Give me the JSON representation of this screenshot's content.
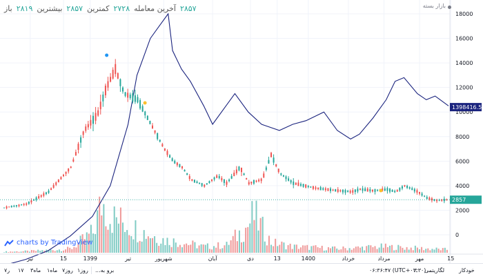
{
  "legend": {
    "bar_value": "۲۸۱۹",
    "bar_label": "باز",
    "high_value": "۲۸۵۷",
    "high_label": "بیشترین",
    "low_value": "۲۷۲۸",
    "low_label": "کمترین",
    "last_label": "آخرین معامله",
    "last_value": "۲۸۵۷"
  },
  "market_status": "بازار بسته",
  "branding": "charts by TradingView",
  "price_axis": {
    "ticks": [
      {
        "value": 18000,
        "label": "18000"
      },
      {
        "value": 16000,
        "label": "16000"
      },
      {
        "value": 14000,
        "label": "14000"
      },
      {
        "value": 12000,
        "label": "12000"
      },
      {
        "value": 10000,
        "label": "10000"
      },
      {
        "value": 8000,
        "label": "8000"
      },
      {
        "value": 6000,
        "label": "6000"
      },
      {
        "value": 4000,
        "label": "4000"
      },
      {
        "value": 2000,
        "label": "2000"
      },
      {
        "value": 0,
        "label": "0"
      }
    ],
    "index_badge": "1398416.50",
    "index_badge_value": 10400,
    "price_badge": "2857",
    "price_badge_value": 2857
  },
  "time_axis": [
    {
      "label": "تیر",
      "pos": 0.06
    },
    {
      "label": "15",
      "pos": 0.135
    },
    {
      "label": "1399",
      "pos": 0.195
    },
    {
      "label": "تیر",
      "pos": 0.28
    },
    {
      "label": "شهریور",
      "pos": 0.36
    },
    {
      "label": "آبان",
      "pos": 0.47
    },
    {
      "label": "دی",
      "pos": 0.555
    },
    {
      "label": "13",
      "pos": 0.615
    },
    {
      "label": "1400",
      "pos": 0.685
    },
    {
      "label": "خرداد",
      "pos": 0.775
    },
    {
      "label": "مرداد",
      "pos": 0.855
    },
    {
      "label": "مهر",
      "pos": 0.935
    },
    {
      "label": "15",
      "pos": 1.005
    }
  ],
  "bottom_bar": {
    "ranges": [
      "۷ر",
      "۱۷",
      "۳ماه",
      "۱ماه",
      "۷روز",
      "۱روز"
    ],
    "goto": "...برو به",
    "time": "۰۶:۳۶:۴۷ (UTC+۰۳:۳۰)",
    "percent": "٪",
    "log": "لگاریتمی",
    "auto": "خودکار"
  },
  "chart_data": [
    {
      "type": "line",
      "name": "",
      "color": "#1a237e",
      "x": [
        0,
        0.05,
        0.1,
        0.15,
        0.2,
        0.24,
        0.28,
        0.3,
        0.33,
        0.35,
        0.37,
        0.38,
        0.4,
        0.42,
        0.45,
        0.47,
        0.5,
        0.52,
        0.55,
        0.58,
        0.62,
        0.65,
        0.68,
        0.72,
        0.75,
        0.78,
        0.8,
        0.83,
        0.86,
        0.88,
        0.9,
        0.93,
        0.95,
        0.97,
        1.0
      ],
      "values": [
        -2500,
        -2000,
        -1300,
        -100,
        1500,
        4000,
        9000,
        13000,
        16000,
        17000,
        18000,
        15000,
        13500,
        12500,
        10500,
        9000,
        10500,
        11500,
        10000,
        9000,
        8500,
        9000,
        9300,
        10000,
        8500,
        7800,
        8200,
        9500,
        11000,
        12500,
        12800,
        11500,
        11000,
        11300,
        10500
      ]
    },
    {
      "type": "candlestick",
      "name": "",
      "color_up": "#26a69a",
      "color_down": "#ef5350",
      "x": [
        0,
        0.05,
        0.1,
        0.15,
        0.18,
        0.21,
        0.23,
        0.25,
        0.27,
        0.3,
        0.33,
        0.36,
        0.38,
        0.4,
        0.42,
        0.45,
        0.48,
        0.5,
        0.53,
        0.55,
        0.58,
        0.6,
        0.62,
        0.65,
        0.7,
        0.75,
        0.78,
        0.8,
        0.83,
        0.86,
        0.88,
        0.9,
        0.93,
        0.95,
        0.97,
        1.0
      ],
      "values": [
        2200,
        2500,
        3500,
        5500,
        8500,
        9800,
        12000,
        13500,
        11500,
        11000,
        9000,
        7000,
        6000,
        5500,
        4500,
        4000,
        4800,
        4200,
        5500,
        4200,
        4500,
        6500,
        5000,
        4200,
        3800,
        3600,
        3500,
        3700,
        3600,
        3700,
        3500,
        4000,
        3500,
        3000,
        2800,
        2857
      ]
    },
    {
      "type": "bar",
      "name": "",
      "x": [
        0.0,
        0.05,
        0.1,
        0.15,
        0.2,
        0.22,
        0.24,
        0.27,
        0.3,
        0.33,
        0.36,
        0.4,
        0.45,
        0.5,
        0.55,
        0.56,
        0.6,
        0.65,
        0.7,
        0.75,
        0.8,
        0.85,
        0.9,
        0.95,
        1.0
      ],
      "values": [
        2,
        3,
        5,
        8,
        40,
        100,
        70,
        60,
        45,
        35,
        25,
        20,
        12,
        15,
        55,
        75,
        20,
        12,
        10,
        8,
        10,
        12,
        10,
        8,
        6
      ]
    }
  ]
}
